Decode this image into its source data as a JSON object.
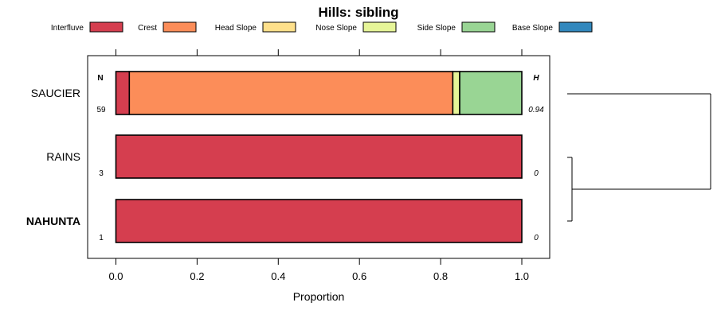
{
  "chart_data": {
    "type": "bar",
    "orientation": "horizontal-stacked",
    "title": "Hills: sibling",
    "xlabel": "Proportion",
    "ylabel": "",
    "xlim": [
      -0.07,
      1.07
    ],
    "xticks": [
      "0.0",
      "0.2",
      "0.4",
      "0.6",
      "0.8",
      "1.0"
    ],
    "xtick_values": [
      0,
      0.2,
      0.4,
      0.6,
      0.8,
      1.0
    ],
    "n_header": "N",
    "h_header": "H",
    "legend": [
      {
        "name": "Interfluve",
        "color": "#D53E4F"
      },
      {
        "name": "Crest",
        "color": "#FC8D59"
      },
      {
        "name": "Head Slope",
        "color": "#FEE08B"
      },
      {
        "name": "Nose Slope",
        "color": "#E6F598"
      },
      {
        "name": "Side Slope",
        "color": "#99D594"
      },
      {
        "name": "Base Slope",
        "color": "#3288BD"
      }
    ],
    "rows": [
      {
        "label": "SAUCIER",
        "bold": false,
        "n": "59",
        "h": "0.94",
        "values": [
          0.033,
          0.797,
          0.0,
          0.017,
          0.153,
          0.0
        ]
      },
      {
        "label": "RAINS",
        "bold": false,
        "n": "3",
        "h": "0",
        "values": [
          1.0,
          0.0,
          0.0,
          0.0,
          0.0,
          0.0
        ]
      },
      {
        "label": "NAHUNTA",
        "bold": true,
        "n": "1",
        "h": "0",
        "values": [
          1.0,
          0.0,
          0.0,
          0.0,
          0.0,
          0.0
        ]
      }
    ],
    "dendrogram": {
      "merges": [
        [
          "RAINS",
          "NAHUNTA"
        ],
        [
          "SAUCIER",
          "RAINS+NAHUNTA"
        ]
      ]
    }
  }
}
